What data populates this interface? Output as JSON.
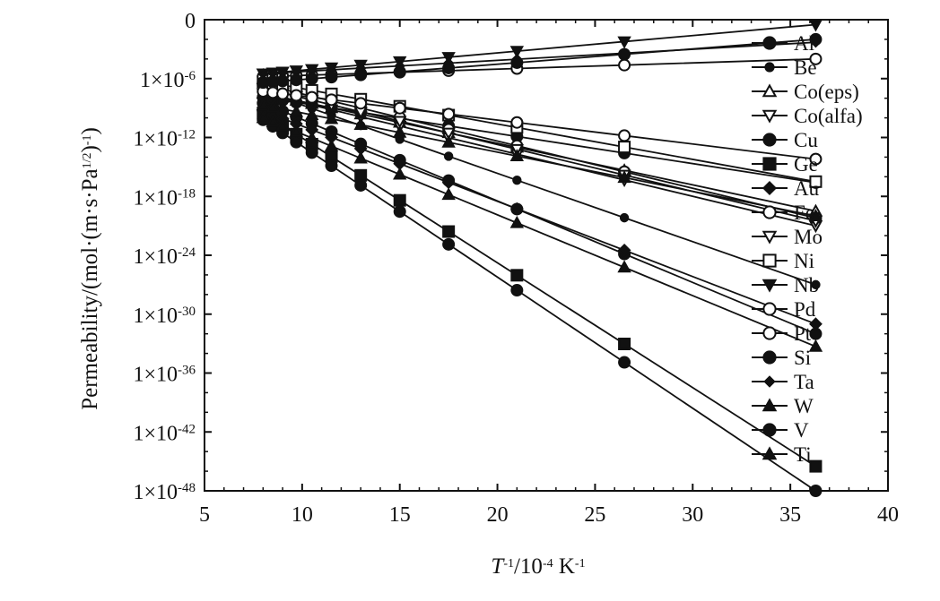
{
  "chart_data": {
    "type": "line",
    "title": "",
    "xlabel": "T⁻¹/10⁻⁴ K⁻¹",
    "xlabel_parts": {
      "t": "T",
      "t_sup": "-1",
      "mid": "/10",
      "mid_sup": "-4",
      "unit": " K",
      "unit_sup": "-1"
    },
    "ylabel": "Permeability/(mol·(m·s·Pa¹ᐟ²)⁻¹)",
    "ylabel_parts": {
      "main": "Permeability/(mol·(m·s·Pa",
      "sup1": "1/2",
      "close": ")",
      "sup2": "-1",
      "end": ")"
    },
    "xlim": [
      5,
      40
    ],
    "ylim": [
      -48,
      0
    ],
    "yscale": "log",
    "x_ticks": [
      5,
      10,
      15,
      20,
      25,
      30,
      35,
      40
    ],
    "x_tick_labels": [
      "5",
      "10",
      "15",
      "20",
      "25",
      "30",
      "35",
      "40"
    ],
    "y_ticks": [
      0,
      -6,
      -12,
      -18,
      -24,
      -30,
      -36,
      -42,
      -48
    ],
    "y_tick_labels": [
      {
        "base": "0",
        "exp": ""
      },
      {
        "base": "1×10",
        "exp": "-6"
      },
      {
        "base": "1×10",
        "exp": "-12"
      },
      {
        "base": "1×10",
        "exp": "-18"
      },
      {
        "base": "1×10",
        "exp": "-24"
      },
      {
        "base": "1×10",
        "exp": "-30"
      },
      {
        "base": "1×10",
        "exp": "-36"
      },
      {
        "base": "1×10",
        "exp": "-42"
      },
      {
        "base": "1×10",
        "exp": "-48"
      }
    ],
    "grid": false,
    "legend_position": "right",
    "x": [
      8,
      8.5,
      9,
      9.7,
      10.5,
      11.5,
      13,
      15,
      17.5,
      21,
      26.5,
      36.3
    ],
    "series": [
      {
        "name": "Al",
        "marker": "circle",
        "y_end": [
          -8.5,
          -32
        ]
      },
      {
        "name": "Be",
        "marker": "circle-small",
        "y_end": [
          -7.3,
          -27
        ]
      },
      {
        "name": "Co(eps)",
        "marker": "triangle-open",
        "y_end": [
          -7.5,
          -19.5
        ]
      },
      {
        "name": "Co(alfa)",
        "marker": "triangle-down-open",
        "y_end": [
          -7.5,
          -21
        ]
      },
      {
        "name": "Cu",
        "marker": "circle",
        "y_end": [
          -7.9,
          -16.6
        ]
      },
      {
        "name": "Ge",
        "marker": "square",
        "y_end": [
          -9.5,
          -45.5
        ]
      },
      {
        "name": "Au",
        "marker": "diamond",
        "y_end": [
          -9.3,
          -31
        ]
      },
      {
        "name": "Fe",
        "marker": "circle-open",
        "y_end": [
          -6.6,
          -20.2
        ]
      },
      {
        "name": "Mo",
        "marker": "triangle-down-open",
        "y_end": [
          -7.0,
          -20.5
        ]
      },
      {
        "name": "Ni",
        "marker": "square-open",
        "y_end": [
          -6.3,
          -16.5
        ]
      },
      {
        "name": "Nb",
        "marker": "triangle-down",
        "y_end": [
          -5.5,
          -0.5
        ]
      },
      {
        "name": "Pd",
        "marker": "circle-open",
        "y_end": [
          -5.8,
          -4.0
        ]
      },
      {
        "name": "Pt",
        "marker": "circle-open",
        "y_end": [
          -7.3,
          -14.2
        ]
      },
      {
        "name": "Si",
        "marker": "circle",
        "y_end": [
          -10.2,
          -48.0
        ]
      },
      {
        "name": "Ta",
        "marker": "diamond-small",
        "y_end": [
          -5.5,
          -2.3
        ]
      },
      {
        "name": "W",
        "marker": "triangle",
        "y_end": [
          -10.0,
          -33.3
        ]
      },
      {
        "name": "V",
        "marker": "circle",
        "y_end": [
          -6.4,
          -2.0
        ]
      },
      {
        "name": "Ti",
        "marker": "triangle",
        "y_end": [
          -8.7,
          -20.0
        ]
      }
    ]
  }
}
